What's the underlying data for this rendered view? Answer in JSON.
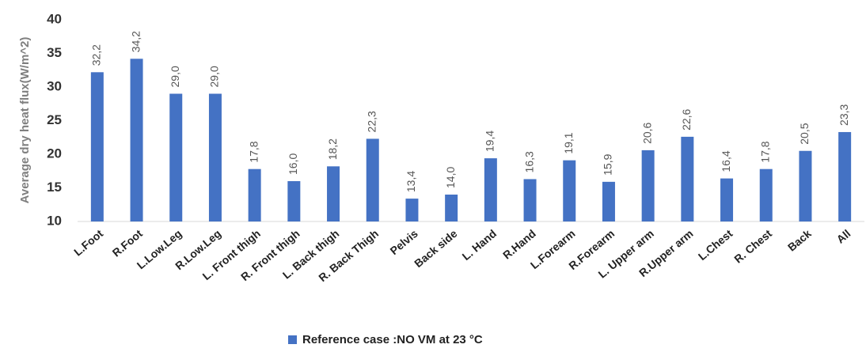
{
  "chart_data": {
    "type": "bar",
    "y_label": "Average dry  heat flux(W/m^2)",
    "categories": [
      "L.Foot",
      "R.Foot",
      "L.Low.Leg",
      "R.Low.Leg",
      "L. Front thigh",
      "R. Front thigh",
      "L. Back thigh",
      "R. Back Thigh",
      "Pelvis",
      "Back side",
      "L. Hand",
      "R.Hand",
      "L.Forearm",
      "R.Forearm",
      "L. Upper arm",
      "R.Upper arm",
      "L.Chest",
      "R. Chest",
      "Back",
      "All"
    ],
    "series": [
      {
        "name": "Reference case :NO VM at 23 °C",
        "color": "#4472c4",
        "values": [
          32.2,
          34.2,
          29.0,
          29.0,
          17.8,
          16.0,
          18.2,
          22.3,
          13.4,
          14.0,
          19.4,
          16.3,
          19.1,
          15.9,
          20.6,
          22.6,
          16.4,
          17.8,
          20.5,
          23.3
        ],
        "value_labels": [
          "32,2",
          "34,2",
          "29,0",
          "29,0",
          "17,8",
          "16,0",
          "18,2",
          "22,3",
          "13,4",
          "14,0",
          "19,4",
          "16,3",
          "19,1",
          "15,9",
          "20,6",
          "22,6",
          "16,4",
          "17,8",
          "20,5",
          "23,3"
        ]
      }
    ],
    "ylim": [
      10,
      40
    ],
    "yticks": [
      10,
      15,
      20,
      25,
      30,
      35,
      40
    ],
    "grid": false
  }
}
